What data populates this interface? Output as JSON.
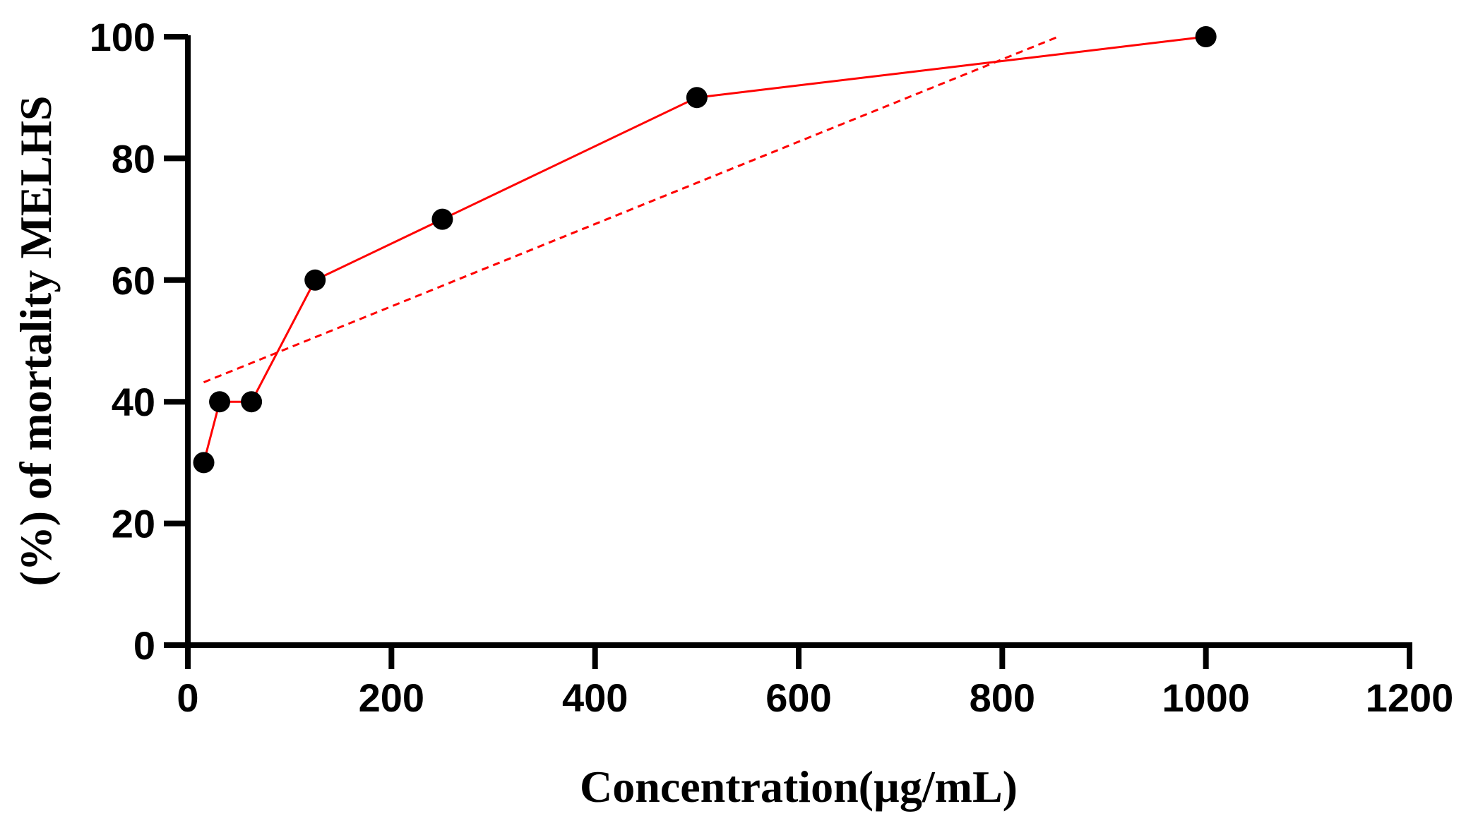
{
  "chart_data": {
    "type": "line",
    "title": "",
    "xlabel": "Concentration(µg/mL)",
    "ylabel": "(%) of mortality MELHS",
    "xlim": [
      0,
      1200
    ],
    "ylim": [
      0,
      100
    ],
    "x_ticks": [
      0,
      200,
      400,
      600,
      800,
      1000,
      1200
    ],
    "y_ticks": [
      0,
      20,
      40,
      60,
      80,
      100
    ],
    "grid": false,
    "legend": "none",
    "series": [
      {
        "style": "solid-line-with-markers",
        "x": [
          15.625,
          31.25,
          62.5,
          125,
          250,
          500,
          1000
        ],
        "y": [
          30,
          40,
          40,
          60,
          70,
          90,
          100
        ],
        "line_color": "#ff0000",
        "marker_color": "#000000"
      },
      {
        "style": "dashed-trend-line",
        "x": [
          15.625,
          855
        ],
        "y": [
          43.2,
          100
        ],
        "line_color": "#ff0000"
      }
    ]
  }
}
